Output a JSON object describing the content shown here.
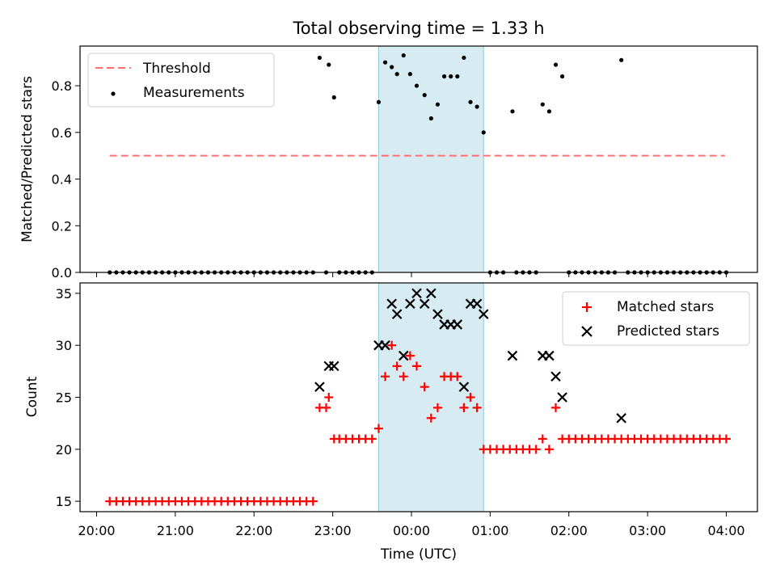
{
  "chart_data": [
    {
      "type": "scatter",
      "title": "Total observing time = 1.33 h",
      "xlabel": "",
      "ylabel": "Matched/Predicted stars",
      "ylim": [
        0,
        0.97
      ],
      "yticks": [
        "0.0",
        "0.2",
        "0.4",
        "0.6",
        "0.8"
      ],
      "highlight_span": {
        "start": "23:35",
        "end": "00:55",
        "color": "#add8e6"
      },
      "legend_position": "upper-left",
      "threshold": {
        "name": "Threshold",
        "value": 0.5,
        "x": [
          "20:10",
          "03:59"
        ],
        "color": "#ff7070",
        "style": "dashed"
      },
      "series": [
        {
          "name": "Measurements",
          "marker": "dot",
          "color": "#000000",
          "points": [
            [
              "20:10",
              0
            ],
            [
              "20:15",
              0
            ],
            [
              "20:20",
              0
            ],
            [
              "20:25",
              0
            ],
            [
              "20:30",
              0
            ],
            [
              "20:35",
              0
            ],
            [
              "20:40",
              0
            ],
            [
              "20:45",
              0
            ],
            [
              "20:50",
              0
            ],
            [
              "20:55",
              0
            ],
            [
              "21:00",
              0
            ],
            [
              "21:05",
              0
            ],
            [
              "21:10",
              0
            ],
            [
              "21:15",
              0
            ],
            [
              "21:20",
              0
            ],
            [
              "21:25",
              0
            ],
            [
              "21:30",
              0
            ],
            [
              "21:35",
              0
            ],
            [
              "21:40",
              0
            ],
            [
              "21:45",
              0
            ],
            [
              "21:50",
              0
            ],
            [
              "21:55",
              0
            ],
            [
              "22:00",
              0
            ],
            [
              "22:05",
              0
            ],
            [
              "22:10",
              0
            ],
            [
              "22:15",
              0
            ],
            [
              "22:20",
              0
            ],
            [
              "22:25",
              0
            ],
            [
              "22:30",
              0
            ],
            [
              "22:35",
              0
            ],
            [
              "22:40",
              0
            ],
            [
              "22:45",
              0
            ],
            [
              "22:50",
              0.92
            ],
            [
              "22:55",
              0
            ],
            [
              "22:57",
              0.89
            ],
            [
              "23:01",
              0.75
            ],
            [
              "23:05",
              0
            ],
            [
              "23:10",
              0
            ],
            [
              "23:15",
              0
            ],
            [
              "23:20",
              0
            ],
            [
              "23:25",
              0
            ],
            [
              "23:30",
              0
            ],
            [
              "23:35",
              0.73
            ],
            [
              "23:40",
              0.9
            ],
            [
              "23:45",
              0.88
            ],
            [
              "23:49",
              0.85
            ],
            [
              "23:54",
              0.93
            ],
            [
              "23:59",
              0.85
            ],
            [
              "00:04",
              0.8
            ],
            [
              "00:10",
              0.76
            ],
            [
              "00:15",
              0.66
            ],
            [
              "00:20",
              0.72
            ],
            [
              "00:25",
              0.84
            ],
            [
              "00:30",
              0.84
            ],
            [
              "00:35",
              0.84
            ],
            [
              "00:40",
              0.92
            ],
            [
              "00:45",
              0.73
            ],
            [
              "00:50",
              0.71
            ],
            [
              "00:55",
              0.6
            ],
            [
              "01:00",
              0
            ],
            [
              "01:05",
              0
            ],
            [
              "01:10",
              0
            ],
            [
              "01:17",
              0.69
            ],
            [
              "01:20",
              0
            ],
            [
              "01:25",
              0
            ],
            [
              "01:30",
              0
            ],
            [
              "01:35",
              0
            ],
            [
              "01:40",
              0.72
            ],
            [
              "01:45",
              0.69
            ],
            [
              "01:50",
              0.89
            ],
            [
              "01:55",
              0.84
            ],
            [
              "02:00",
              0
            ],
            [
              "02:05",
              0
            ],
            [
              "02:10",
              0
            ],
            [
              "02:15",
              0
            ],
            [
              "02:20",
              0
            ],
            [
              "02:25",
              0
            ],
            [
              "02:30",
              0
            ],
            [
              "02:35",
              0
            ],
            [
              "02:40",
              0.91
            ],
            [
              "02:45",
              0
            ],
            [
              "02:50",
              0
            ],
            [
              "02:55",
              0
            ],
            [
              "03:00",
              0
            ],
            [
              "03:05",
              0
            ],
            [
              "03:10",
              0
            ],
            [
              "03:15",
              0
            ],
            [
              "03:20",
              0
            ],
            [
              "03:25",
              0
            ],
            [
              "03:30",
              0
            ],
            [
              "03:35",
              0
            ],
            [
              "03:40",
              0
            ],
            [
              "03:45",
              0
            ],
            [
              "03:50",
              0
            ],
            [
              "03:55",
              0
            ],
            [
              "04:00",
              0
            ]
          ]
        }
      ]
    },
    {
      "type": "scatter",
      "title": "",
      "xlabel": "Time (UTC)",
      "ylabel": "Count",
      "ylim": [
        14,
        36
      ],
      "yticks": [
        "15",
        "20",
        "25",
        "30",
        "35"
      ],
      "xticks": [
        "20:00",
        "21:00",
        "22:00",
        "23:00",
        "00:00",
        "01:00",
        "02:00",
        "03:00",
        "04:00"
      ],
      "highlight_span": {
        "start": "23:35",
        "end": "00:55",
        "color": "#add8e6"
      },
      "legend_position": "upper-right",
      "series": [
        {
          "name": "Matched stars",
          "marker": "plus",
          "color": "#ff0000",
          "points": [
            [
              "20:10",
              15
            ],
            [
              "20:15",
              15
            ],
            [
              "20:20",
              15
            ],
            [
              "20:25",
              15
            ],
            [
              "20:30",
              15
            ],
            [
              "20:35",
              15
            ],
            [
              "20:40",
              15
            ],
            [
              "20:45",
              15
            ],
            [
              "20:50",
              15
            ],
            [
              "20:55",
              15
            ],
            [
              "21:00",
              15
            ],
            [
              "21:05",
              15
            ],
            [
              "21:10",
              15
            ],
            [
              "21:15",
              15
            ],
            [
              "21:20",
              15
            ],
            [
              "21:25",
              15
            ],
            [
              "21:30",
              15
            ],
            [
              "21:35",
              15
            ],
            [
              "21:40",
              15
            ],
            [
              "21:45",
              15
            ],
            [
              "21:50",
              15
            ],
            [
              "21:55",
              15
            ],
            [
              "22:00",
              15
            ],
            [
              "22:05",
              15
            ],
            [
              "22:10",
              15
            ],
            [
              "22:15",
              15
            ],
            [
              "22:20",
              15
            ],
            [
              "22:25",
              15
            ],
            [
              "22:30",
              15
            ],
            [
              "22:35",
              15
            ],
            [
              "22:40",
              15
            ],
            [
              "22:45",
              15
            ],
            [
              "22:50",
              24
            ],
            [
              "22:55",
              24
            ],
            [
              "22:57",
              25
            ],
            [
              "23:01",
              21
            ],
            [
              "23:05",
              21
            ],
            [
              "23:10",
              21
            ],
            [
              "23:15",
              21
            ],
            [
              "23:20",
              21
            ],
            [
              "23:25",
              21
            ],
            [
              "23:30",
              21
            ],
            [
              "23:35",
              22
            ],
            [
              "23:40",
              27
            ],
            [
              "23:45",
              30
            ],
            [
              "23:49",
              28
            ],
            [
              "23:54",
              27
            ],
            [
              "23:59",
              29
            ],
            [
              "00:04",
              28
            ],
            [
              "00:10",
              26
            ],
            [
              "00:15",
              23
            ],
            [
              "00:20",
              24
            ],
            [
              "00:25",
              27
            ],
            [
              "00:30",
              27
            ],
            [
              "00:35",
              27
            ],
            [
              "00:40",
              24
            ],
            [
              "00:45",
              25
            ],
            [
              "00:50",
              24
            ],
            [
              "00:55",
              20
            ],
            [
              "01:00",
              20
            ],
            [
              "01:05",
              20
            ],
            [
              "01:10",
              20
            ],
            [
              "01:15",
              20
            ],
            [
              "01:20",
              20
            ],
            [
              "01:25",
              20
            ],
            [
              "01:30",
              20
            ],
            [
              "01:35",
              20
            ],
            [
              "01:40",
              21
            ],
            [
              "01:45",
              20
            ],
            [
              "01:50",
              24
            ],
            [
              "01:55",
              21
            ],
            [
              "02:00",
              21
            ],
            [
              "02:05",
              21
            ],
            [
              "02:10",
              21
            ],
            [
              "02:15",
              21
            ],
            [
              "02:20",
              21
            ],
            [
              "02:25",
              21
            ],
            [
              "02:30",
              21
            ],
            [
              "02:35",
              21
            ],
            [
              "02:40",
              21
            ],
            [
              "02:45",
              21
            ],
            [
              "02:50",
              21
            ],
            [
              "02:55",
              21
            ],
            [
              "03:00",
              21
            ],
            [
              "03:05",
              21
            ],
            [
              "03:10",
              21
            ],
            [
              "03:15",
              21
            ],
            [
              "03:20",
              21
            ],
            [
              "03:25",
              21
            ],
            [
              "03:30",
              21
            ],
            [
              "03:35",
              21
            ],
            [
              "03:40",
              21
            ],
            [
              "03:45",
              21
            ],
            [
              "03:50",
              21
            ],
            [
              "03:55",
              21
            ],
            [
              "04:00",
              21
            ]
          ]
        },
        {
          "name": "Predicted stars",
          "marker": "x",
          "color": "#000000",
          "points": [
            [
              "22:50",
              26
            ],
            [
              "22:57",
              28
            ],
            [
              "23:01",
              28
            ],
            [
              "23:35",
              30
            ],
            [
              "23:40",
              30
            ],
            [
              "23:45",
              34
            ],
            [
              "23:49",
              33
            ],
            [
              "23:54",
              29
            ],
            [
              "23:59",
              34
            ],
            [
              "00:04",
              35
            ],
            [
              "00:10",
              34
            ],
            [
              "00:15",
              35
            ],
            [
              "00:20",
              33
            ],
            [
              "00:25",
              32
            ],
            [
              "00:30",
              32
            ],
            [
              "00:35",
              32
            ],
            [
              "00:40",
              26
            ],
            [
              "00:45",
              34
            ],
            [
              "00:50",
              34
            ],
            [
              "00:55",
              33
            ],
            [
              "01:17",
              29
            ],
            [
              "01:40",
              29
            ],
            [
              "01:45",
              29
            ],
            [
              "01:50",
              27
            ],
            [
              "01:55",
              25
            ],
            [
              "02:40",
              23
            ]
          ]
        }
      ]
    }
  ]
}
